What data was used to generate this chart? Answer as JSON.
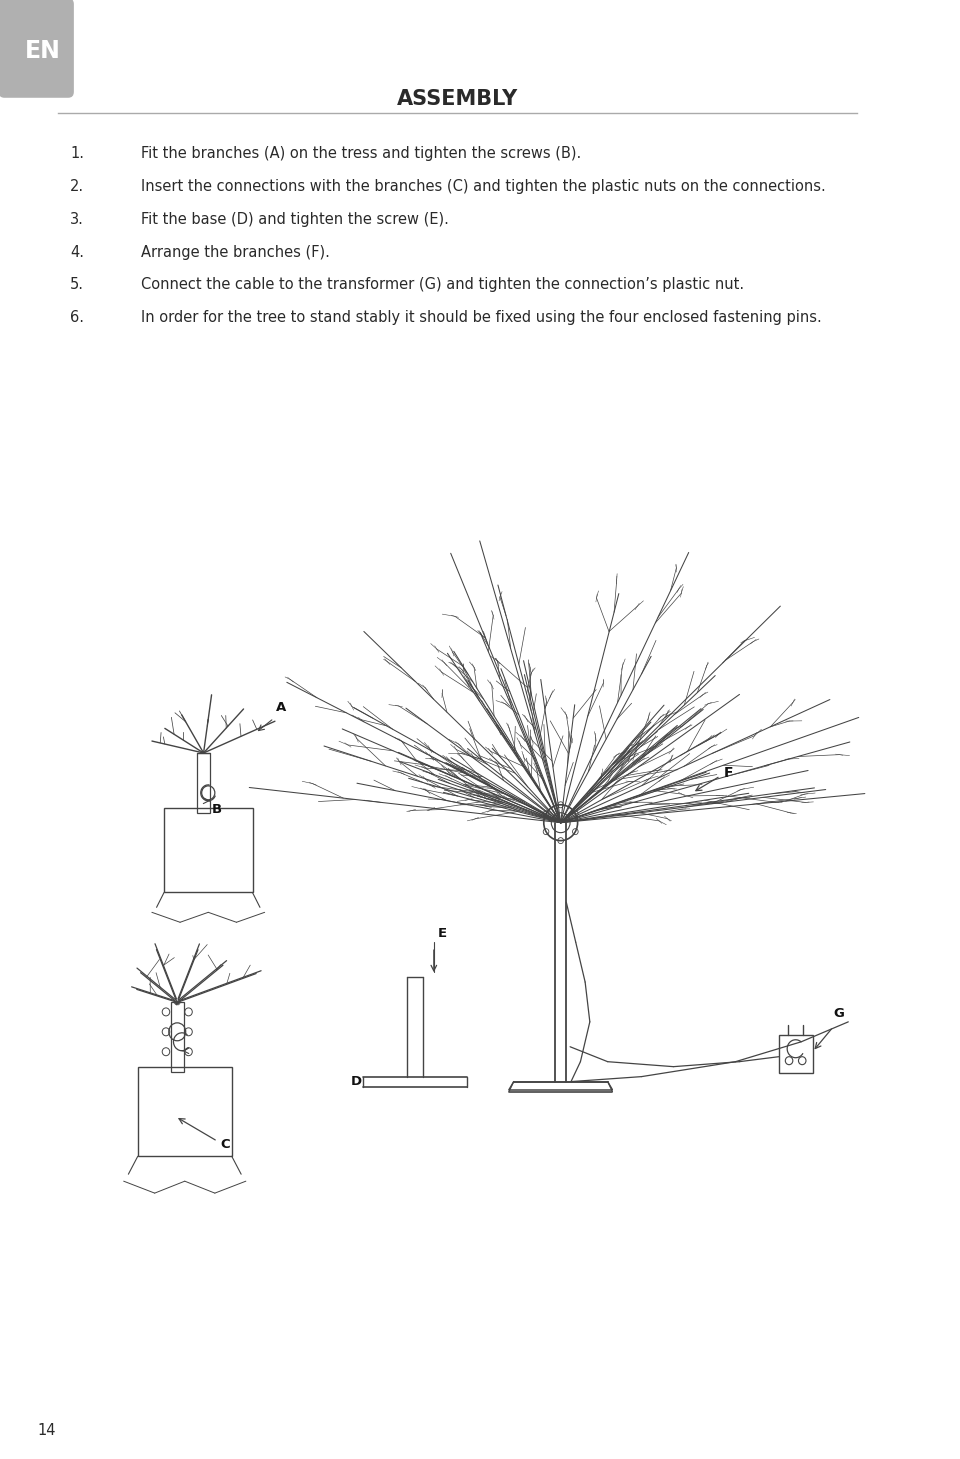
{
  "title": "ASSEMBLY",
  "background_color": "#ffffff",
  "text_color": "#2a2a2a",
  "tab_color": "#b0b0b0",
  "tab_text": "EN",
  "page_number": "14",
  "instructions": [
    {
      "num": "1.",
      "text": "Fit the branches (A) on the tress and tighten the screws (B)."
    },
    {
      "num": "2.",
      "text": "Insert the connections with the branches (C) and tighten the plastic nuts on the connections."
    },
    {
      "num": "3.",
      "text": "Fit the base (D) and tighten the screw (E)."
    },
    {
      "num": "4.",
      "text": "Arrange the branches (F)."
    },
    {
      "num": "5.",
      "text": "Connect the cable to the transformer (G) and tighten the connection’s plastic nut."
    },
    {
      "num": "6.",
      "text": "In order for the tree to stand stably it should be fixed using the four enclosed fastening pins."
    }
  ],
  "line_color": "#444444",
  "label_color": "#111111",
  "figsize": [
    9.6,
    14.59
  ],
  "dpi": 100,
  "xlim": [
    0,
    960
  ],
  "ylim": [
    0,
    1459
  ]
}
